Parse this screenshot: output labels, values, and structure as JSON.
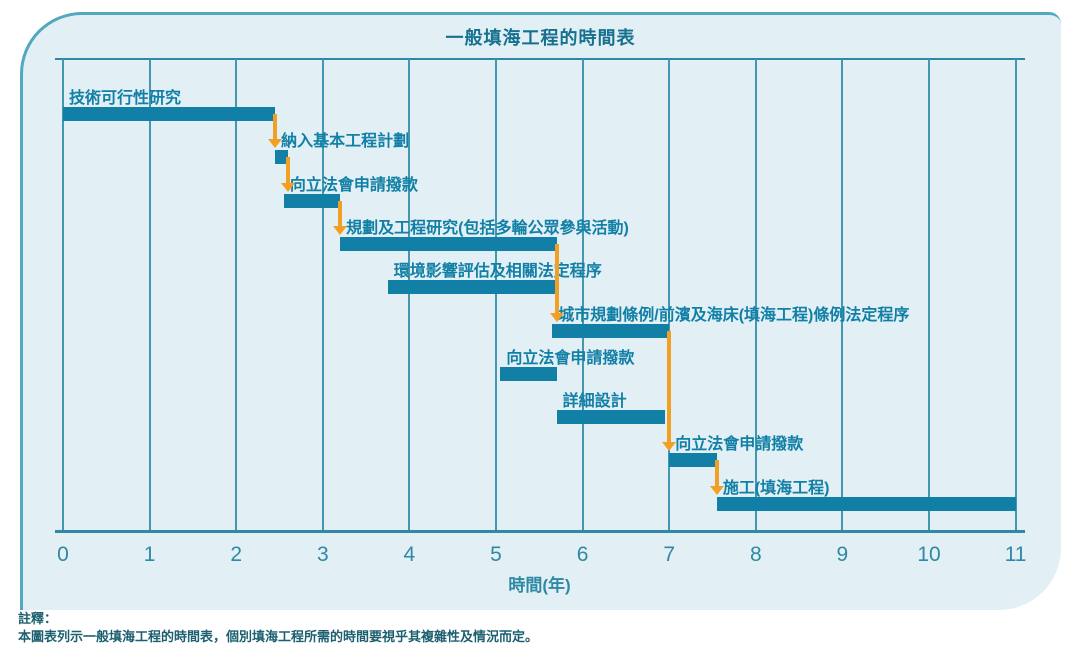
{
  "title": "一般填海工程的時間表",
  "axis": {
    "label": "時間(年)",
    "ticks": [
      "0",
      "1",
      "2",
      "3",
      "4",
      "5",
      "6",
      "7",
      "8",
      "9",
      "10",
      "11"
    ]
  },
  "note": {
    "heading": "註釋：",
    "body": "本圖表列示一般填海工程的時間表，個別填海工程所需的時間要視乎其複雜性及情況而定。"
  },
  "colors": {
    "bar": "#1280a6",
    "arrow": "#f2a024",
    "grid": "#4497b0",
    "axis": "#2f89a4",
    "label_text": "#1280a6",
    "card_bg": "#e2eff5",
    "card_border": "#52a8be",
    "note_text": "#1c5f70"
  },
  "chart_data": {
    "type": "gantt",
    "title": "一般填海工程的時間表",
    "xlabel": "時間(年)",
    "xlim": [
      0,
      11
    ],
    "grid": true,
    "tasks": [
      {
        "label": "技術可行性研究",
        "start": 0,
        "end": 2.45
      },
      {
        "label": "納入基本工程計劃",
        "start": 2.45,
        "end": 2.6
      },
      {
        "label": "向立法會申請撥款",
        "start": 2.55,
        "end": 3.2
      },
      {
        "label": "規劃及工程研究(包括多輪公眾參與活動)",
        "start": 3.2,
        "end": 5.7
      },
      {
        "label": "環境影響評估及相關法定程序",
        "start": 3.75,
        "end": 5.7
      },
      {
        "label": "城市規劃條例/前濱及海床(填海工程)條例法定程序",
        "start": 5.65,
        "end": 7.0
      },
      {
        "label": "向立法會申請撥款",
        "start": 5.05,
        "end": 5.7
      },
      {
        "label": "詳細設計",
        "start": 5.7,
        "end": 6.95
      },
      {
        "label": "向立法會申請撥款",
        "start": 7.0,
        "end": 7.55
      },
      {
        "label": "施工(填海工程)",
        "start": 7.55,
        "end": 11.0
      }
    ],
    "connectors": [
      {
        "from": 0,
        "to": 1
      },
      {
        "from": 1,
        "to": 2
      },
      {
        "from": 2,
        "to": 3
      },
      {
        "from": 3,
        "to": 5
      },
      {
        "from": 5,
        "to": 8
      },
      {
        "from": 8,
        "to": 9
      }
    ]
  }
}
